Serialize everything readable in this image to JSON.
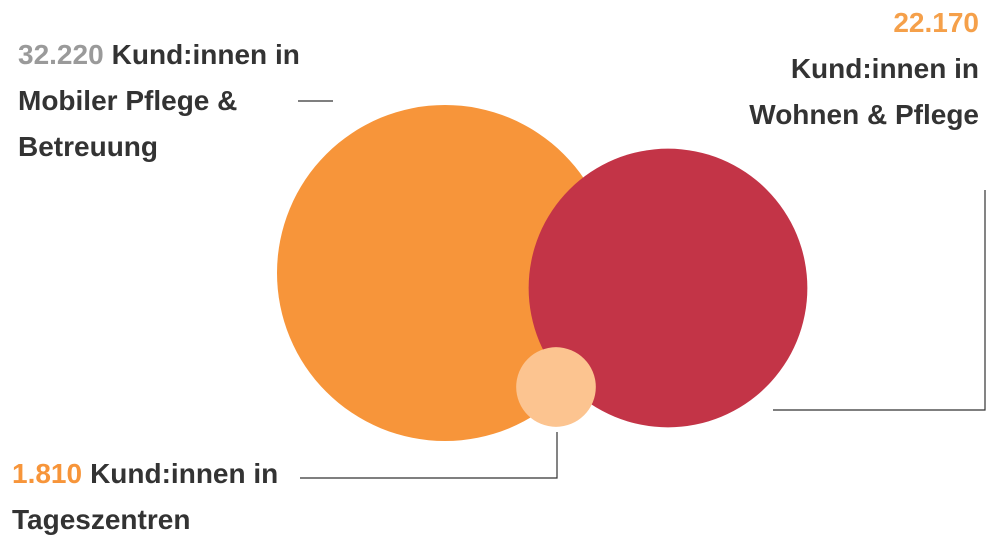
{
  "chart_data": {
    "type": "bubble",
    "categories": [
      "Kund:innen in Mobiler Pflege & Betreuung",
      "Kund:innen in Wohnen & Pflege",
      "Kund:innen in Tageszentren"
    ],
    "values": [
      32220,
      22170,
      1810
    ],
    "value_labels": [
      "32.220",
      "22.170",
      "1.810"
    ],
    "colors": [
      "#f7953a",
      "#c33447",
      "#fcc490"
    ],
    "label_colors": [
      "#9a9a9a",
      "#f5a04a",
      "#f7953a"
    ]
  }
}
